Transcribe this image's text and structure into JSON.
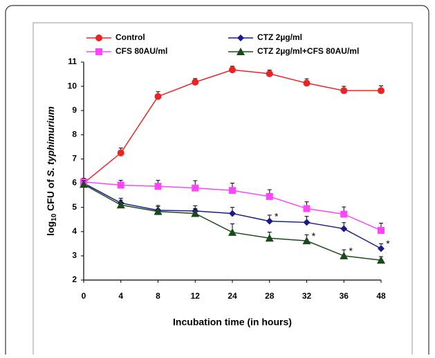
{
  "chart_data": {
    "type": "line",
    "ylabel": [
      "log",
      "10",
      " CFU of ",
      "S. typhimurium"
    ],
    "xlabel": "Incubation time (in hours)",
    "categories": [
      "0",
      "4",
      "8",
      "12",
      "24",
      "28",
      "32",
      "36",
      "48"
    ],
    "ylim": [
      2,
      11
    ],
    "yticks": [
      2,
      3,
      4,
      5,
      6,
      7,
      8,
      9,
      10,
      11
    ],
    "series": [
      {
        "name": "Control",
        "color": "#ee2222",
        "marker": "circle",
        "values": [
          6.0,
          7.25,
          9.58,
          10.17,
          10.68,
          10.52,
          10.13,
          9.82,
          9.82
        ],
        "errors": [
          0.15,
          0.2,
          0.2,
          0.15,
          0.15,
          0.15,
          0.18,
          0.18,
          0.2
        ]
      },
      {
        "name": "CTZ 2µg/ml",
        "color": "#1a1a8c",
        "marker": "diamond",
        "values": [
          6.0,
          5.18,
          4.88,
          4.85,
          4.75,
          4.43,
          4.38,
          4.12,
          3.3
        ],
        "errors": [
          0.15,
          0.2,
          0.2,
          0.22,
          0.25,
          0.25,
          0.25,
          0.25,
          0.2
        ]
      },
      {
        "name": "CFS 80AU/ml",
        "color": "#ff44ff",
        "marker": "square",
        "values": [
          6.05,
          5.92,
          5.87,
          5.8,
          5.7,
          5.45,
          4.95,
          4.72,
          4.05
        ],
        "errors": [
          0.15,
          0.2,
          0.25,
          0.3,
          0.3,
          0.28,
          0.28,
          0.3,
          0.3
        ]
      },
      {
        "name": "CTZ 2µg/ml+CFS 80AU/ml",
        "color": "#1a4a1a",
        "marker": "triangle",
        "values": [
          5.95,
          5.1,
          4.83,
          4.75,
          3.97,
          3.73,
          3.62,
          3.0,
          2.82
        ],
        "errors": [
          0.15,
          0.2,
          0.2,
          0.2,
          0.35,
          0.25,
          0.25,
          0.25,
          0.15
        ]
      }
    ],
    "annotations": [
      {
        "text": "*",
        "series": 1,
        "index": 5
      },
      {
        "text": "*",
        "series": 3,
        "index": 6
      },
      {
        "text": "*",
        "series": 3,
        "index": 7
      },
      {
        "text": "*",
        "series": 1,
        "index": 8
      }
    ]
  }
}
